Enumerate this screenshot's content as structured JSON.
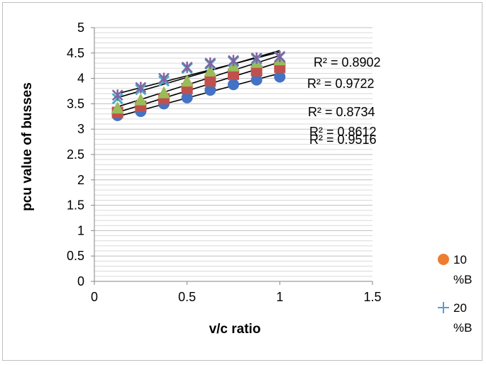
{
  "chart_data": {
    "type": "scatter",
    "xlabel": "v/c ratio",
    "ylabel": "pcu value of busses",
    "xlim": [
      0,
      1.5
    ],
    "ylim": [
      0,
      5
    ],
    "x_ticks": [
      "0",
      "0.5",
      "1",
      "1.5"
    ],
    "y_ticks": [
      "0",
      "0.5",
      "1",
      "1.5",
      "2",
      "2.5",
      "3",
      "3.5",
      "4",
      "4.5",
      "5"
    ],
    "y_minor_step": 0.1,
    "grid": true,
    "trendline": "linear",
    "legend_position": "right",
    "legend": [
      {
        "line1": "10",
        "line2": "%B",
        "marker": "circle",
        "color": "#ED7D31"
      },
      {
        "line1": "20",
        "line2": "%B",
        "marker": "plus",
        "color": "#5B9BD5"
      }
    ],
    "series": [
      {
        "marker": "circle",
        "color": "#4472C4",
        "x": [
          0.125,
          0.25,
          0.375,
          0.5,
          0.625,
          0.75,
          0.875,
          1.0
        ],
        "y": [
          3.27,
          3.35,
          3.5,
          3.62,
          3.77,
          3.88,
          3.97,
          4.03
        ],
        "trend": [
          3.25,
          4.1
        ],
        "r2": "R² = 0.9516"
      },
      {
        "marker": "square",
        "color": "#C0504D",
        "x": [
          0.125,
          0.25,
          0.375,
          0.5,
          0.625,
          0.75,
          0.875,
          1.0
        ],
        "y": [
          3.33,
          3.45,
          3.6,
          3.8,
          3.95,
          4.08,
          4.15,
          4.22
        ],
        "trend": [
          3.33,
          4.32
        ],
        "r2": "R² = 0.8612"
      },
      {
        "marker": "triangle",
        "color": "#9BBB59",
        "x": [
          0.125,
          0.25,
          0.375,
          0.5,
          0.625,
          0.75,
          0.875,
          1.0
        ],
        "y": [
          3.42,
          3.58,
          3.72,
          3.95,
          4.15,
          4.25,
          4.32,
          4.37
        ],
        "trend": [
          3.44,
          4.45
        ],
        "r2": "R² = 0.8734"
      },
      {
        "marker": "x",
        "color": "#4BACC6",
        "x": [
          0.125,
          0.25,
          0.375,
          0.5,
          0.625,
          0.75,
          0.875,
          1.0
        ],
        "y": [
          3.6,
          3.78,
          3.95,
          4.2,
          4.28,
          4.33,
          4.38,
          4.42
        ],
        "trend": [
          3.62,
          4.55
        ],
        "r2": "R² = 0.9722"
      },
      {
        "marker": "star",
        "color": "#8064A2",
        "x": [
          0.125,
          0.25,
          0.375,
          0.5,
          0.625,
          0.75,
          0.875,
          1.0
        ],
        "y": [
          3.67,
          3.82,
          4.0,
          4.22,
          4.3,
          4.35,
          4.4,
          4.43
        ],
        "trend": [
          3.7,
          4.52
        ],
        "r2": "R² = 0.8902"
      }
    ]
  }
}
